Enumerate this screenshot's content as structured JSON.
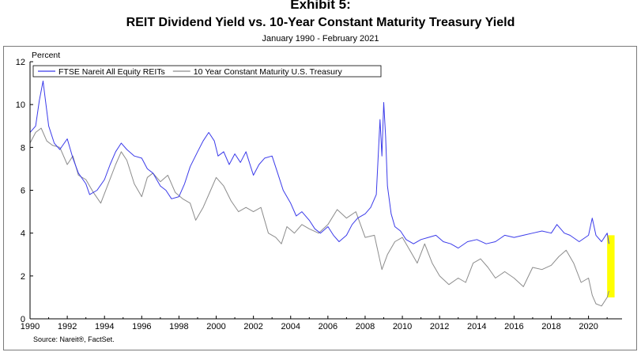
{
  "exhibit_label": "Exhibit 5:",
  "chart_data": {
    "type": "line",
    "title": "REIT Dividend Yield vs. 10-Year Constant Maturity Treasury Yield",
    "subtitle": "January 1990 - February 2021",
    "ylabel": "Percent",
    "xlabel": "",
    "xlim": [
      1990,
      2021.8
    ],
    "ylim": [
      0,
      12
    ],
    "yticks": [
      0,
      2,
      4,
      6,
      8,
      10,
      12
    ],
    "xticks": [
      1990,
      1992,
      1994,
      1996,
      1998,
      2000,
      2002,
      2004,
      2006,
      2008,
      2010,
      2012,
      2014,
      2016,
      2018,
      2020
    ],
    "legend_position": "top-left",
    "grid": false,
    "series": [
      {
        "name": "FTSE Nareit All Equity REITs",
        "color": "#3b3bea",
        "x": [
          1990.0,
          1990.3,
          1990.5,
          1990.7,
          1990.8,
          1991.0,
          1991.3,
          1991.6,
          1992.0,
          1992.3,
          1992.6,
          1993.0,
          1993.2,
          1993.6,
          1994.0,
          1994.3,
          1994.6,
          1994.9,
          1995.2,
          1995.6,
          1996.0,
          1996.3,
          1996.6,
          1997.0,
          1997.3,
          1997.6,
          1998.0,
          1998.3,
          1998.6,
          1999.0,
          1999.3,
          1999.6,
          1999.9,
          2000.1,
          2000.4,
          2000.7,
          2001.0,
          2001.3,
          2001.6,
          2002.0,
          2002.3,
          2002.6,
          2003.0,
          2003.3,
          2003.6,
          2004.0,
          2004.3,
          2004.6,
          2005.0,
          2005.3,
          2005.6,
          2006.0,
          2006.3,
          2006.6,
          2007.0,
          2007.3,
          2007.6,
          2008.0,
          2008.3,
          2008.6,
          2008.8,
          2008.9,
          2009.0,
          2009.1,
          2009.2,
          2009.4,
          2009.6,
          2009.9,
          2010.2,
          2010.6,
          2011.0,
          2011.4,
          2011.8,
          2012.2,
          2012.6,
          2013.0,
          2013.5,
          2014.0,
          2014.5,
          2015.0,
          2015.5,
          2016.0,
          2016.5,
          2017.0,
          2017.5,
          2018.0,
          2018.3,
          2018.7,
          2019.0,
          2019.5,
          2020.0,
          2020.2,
          2020.4,
          2020.7,
          2021.0,
          2021.1
        ],
        "values": [
          8.7,
          9.0,
          10.2,
          11.1,
          10.4,
          9.0,
          8.2,
          7.9,
          8.4,
          7.5,
          6.8,
          6.3,
          5.8,
          6.0,
          6.5,
          7.2,
          7.8,
          8.2,
          7.9,
          7.6,
          7.5,
          7.0,
          6.8,
          6.2,
          6.0,
          5.6,
          5.7,
          6.3,
          7.1,
          7.8,
          8.3,
          8.7,
          8.3,
          7.6,
          7.8,
          7.2,
          7.7,
          7.3,
          7.8,
          6.7,
          7.2,
          7.5,
          7.6,
          6.8,
          6.0,
          5.4,
          4.8,
          5.0,
          4.6,
          4.2,
          4.0,
          4.3,
          3.9,
          3.6,
          3.9,
          4.4,
          4.7,
          4.9,
          5.2,
          5.8,
          9.3,
          7.6,
          10.1,
          8.5,
          6.2,
          4.9,
          4.3,
          4.1,
          3.7,
          3.5,
          3.7,
          3.8,
          3.9,
          3.6,
          3.5,
          3.3,
          3.6,
          3.7,
          3.5,
          3.6,
          3.9,
          3.8,
          3.9,
          4.0,
          4.1,
          4.0,
          4.4,
          4.0,
          3.9,
          3.6,
          3.9,
          4.7,
          3.9,
          3.6,
          4.0,
          3.5
        ]
      },
      {
        "name": "10 Year Constant Maturity U.S. Treasury",
        "color": "#8c8c8c",
        "x": [
          1990.0,
          1990.3,
          1990.6,
          1990.9,
          1991.2,
          1991.6,
          1992.0,
          1992.3,
          1992.6,
          1993.0,
          1993.4,
          1993.8,
          1994.2,
          1994.6,
          1994.9,
          1995.2,
          1995.6,
          1996.0,
          1996.3,
          1996.6,
          1997.0,
          1997.4,
          1997.8,
          1998.2,
          1998.6,
          1998.9,
          1999.3,
          1999.7,
          2000.0,
          2000.4,
          2000.8,
          2001.2,
          2001.6,
          2002.0,
          2002.4,
          2002.8,
          2003.2,
          2003.5,
          2003.8,
          2004.2,
          2004.6,
          2005.0,
          2005.5,
          2006.0,
          2006.5,
          2007.0,
          2007.5,
          2008.0,
          2008.5,
          2008.9,
          2009.2,
          2009.6,
          2010.0,
          2010.4,
          2010.8,
          2011.2,
          2011.6,
          2012.0,
          2012.5,
          2013.0,
          2013.4,
          2013.8,
          2014.2,
          2014.6,
          2015.0,
          2015.5,
          2016.0,
          2016.5,
          2017.0,
          2017.5,
          2018.0,
          2018.4,
          2018.8,
          2019.2,
          2019.6,
          2020.0,
          2020.2,
          2020.4,
          2020.7,
          2021.0,
          2021.1
        ],
        "values": [
          8.2,
          8.7,
          8.9,
          8.3,
          8.1,
          8.0,
          7.2,
          7.6,
          6.7,
          6.5,
          5.9,
          5.4,
          6.3,
          7.2,
          7.8,
          7.4,
          6.3,
          5.7,
          6.6,
          6.8,
          6.4,
          6.7,
          5.9,
          5.6,
          5.4,
          4.6,
          5.2,
          6.0,
          6.6,
          6.2,
          5.5,
          5.0,
          5.2,
          5.0,
          5.2,
          4.0,
          3.8,
          3.5,
          4.3,
          4.0,
          4.4,
          4.2,
          4.0,
          4.4,
          5.1,
          4.7,
          5.0,
          3.8,
          3.9,
          2.3,
          3.0,
          3.6,
          3.8,
          3.2,
          2.6,
          3.5,
          2.6,
          2.0,
          1.6,
          1.9,
          1.7,
          2.6,
          2.8,
          2.4,
          1.9,
          2.2,
          1.9,
          1.5,
          2.4,
          2.3,
          2.5,
          2.9,
          3.2,
          2.6,
          1.7,
          1.9,
          1.1,
          0.7,
          0.6,
          1.0,
          1.3
        ]
      }
    ],
    "highlight": {
      "x_from": 2021.0,
      "x_to": 2021.4,
      "y_from": 1.0,
      "y_to": 3.9,
      "color": "#ffff00"
    }
  },
  "source_text": "Source: Nareit®, FactSet."
}
